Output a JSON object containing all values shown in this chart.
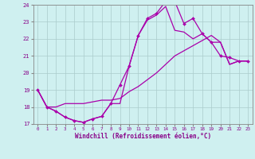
{
  "xlabel": "Windchill (Refroidissement éolien,°C)",
  "background_color": "#cff0f0",
  "grid_color": "#aacccc",
  "line_color": "#aa00aa",
  "marker_color": "#aa00aa",
  "xlim": [
    -0.5,
    23.5
  ],
  "ylim": [
    17,
    24
  ],
  "yticks": [
    17,
    18,
    19,
    20,
    21,
    22,
    23,
    24
  ],
  "xticks": [
    0,
    1,
    2,
    3,
    4,
    5,
    6,
    7,
    8,
    9,
    10,
    11,
    12,
    13,
    14,
    15,
    16,
    17,
    18,
    19,
    20,
    21,
    22,
    23
  ],
  "series": [
    {
      "x": [
        0,
        1,
        2,
        3,
        4,
        5,
        6,
        7,
        8,
        9,
        10,
        11,
        12,
        13,
        14,
        15,
        16,
        17,
        18,
        19,
        20,
        21,
        22,
        23
      ],
      "y": [
        19.0,
        18.0,
        17.75,
        17.4,
        17.2,
        17.1,
        17.3,
        17.45,
        18.2,
        19.3,
        20.4,
        22.2,
        23.2,
        23.5,
        24.2,
        24.2,
        22.9,
        23.2,
        22.3,
        21.8,
        21.0,
        20.9,
        20.7,
        20.7
      ],
      "has_markers": true
    },
    {
      "x": [
        0,
        1,
        2,
        3,
        4,
        5,
        6,
        7,
        8,
        9,
        10,
        11,
        12,
        13,
        14,
        15,
        16,
        17,
        18,
        19,
        20,
        21,
        22,
        23
      ],
      "y": [
        19.0,
        18.0,
        17.75,
        17.4,
        17.2,
        17.1,
        17.3,
        17.45,
        18.2,
        18.2,
        20.4,
        22.2,
        23.1,
        23.4,
        23.9,
        22.5,
        22.4,
        22.0,
        22.3,
        21.8,
        21.8,
        20.5,
        20.7,
        20.7
      ],
      "has_markers": false
    },
    {
      "x": [
        0,
        1,
        2,
        3,
        4,
        5,
        6,
        7,
        8,
        9,
        10,
        11,
        12,
        13,
        14,
        15,
        16,
        17,
        18,
        19,
        20,
        21,
        22,
        23
      ],
      "y": [
        19.0,
        18.0,
        18.0,
        18.2,
        18.2,
        18.2,
        18.3,
        18.4,
        18.4,
        18.5,
        18.9,
        19.2,
        19.6,
        20.0,
        20.5,
        21.0,
        21.3,
        21.6,
        21.9,
        22.2,
        21.8,
        20.5,
        20.7,
        20.7
      ],
      "has_markers": false
    }
  ]
}
